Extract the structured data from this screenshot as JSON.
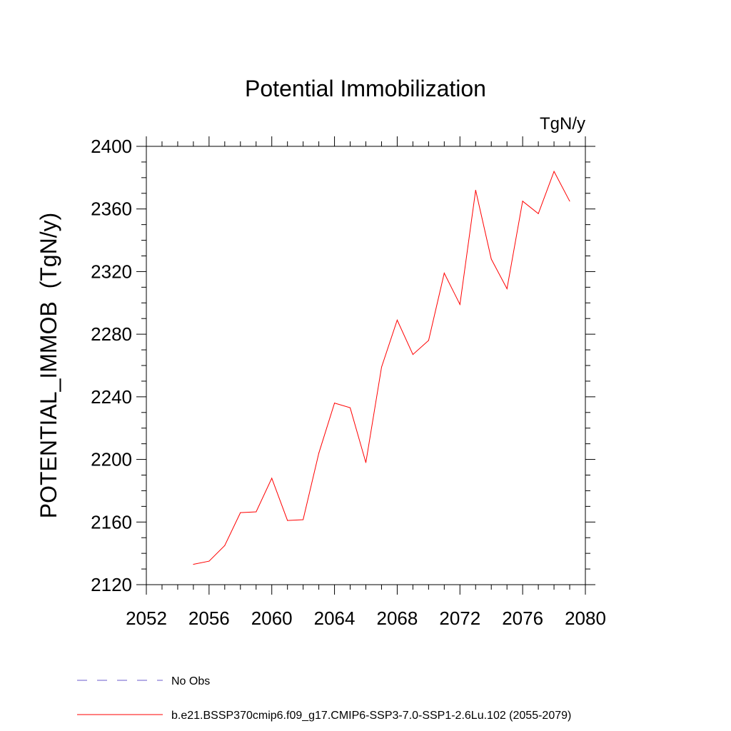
{
  "chart_data": {
    "type": "line",
    "title": "Potential Immobilization",
    "units_label": "TgN/y",
    "ylabel": "POTENTIAL_IMMOB  (TgN/y)",
    "xlabel": "",
    "xlim": [
      2052,
      2080
    ],
    "ylim": [
      2120,
      2400
    ],
    "xticks": [
      2052,
      2056,
      2060,
      2064,
      2068,
      2072,
      2076,
      2080
    ],
    "yticks": [
      2120,
      2160,
      2200,
      2240,
      2280,
      2320,
      2360,
      2400
    ],
    "series": [
      {
        "name": "b.e21.BSSP370cmip6.f09_g17.CMIP6-SSP3-7.0-SSP1-2.6Lu.102 (2055-2079)",
        "color": "#ff0000",
        "x": [
          2055,
          2056,
          2057,
          2058,
          2059,
          2060,
          2061,
          2062,
          2063,
          2064,
          2065,
          2066,
          2067,
          2068,
          2069,
          2070,
          2071,
          2072,
          2073,
          2074,
          2075,
          2076,
          2077,
          2078,
          2079
        ],
        "values": [
          2133,
          2135,
          2145,
          2166,
          2166.5,
          2188,
          2161,
          2161.5,
          2204,
          2236,
          2233,
          2198,
          2259,
          2289,
          2267,
          2276,
          2319,
          2299,
          2372,
          2328,
          2309,
          2365,
          2357,
          2384,
          2365
        ]
      }
    ],
    "legend": [
      {
        "label": "No Obs",
        "color": "#6a5acd",
        "style": "dashed"
      },
      {
        "label": "b.e21.BSSP370cmip6.f09_g17.CMIP6-SSP3-7.0-SSP1-2.6Lu.102 (2055-2079)",
        "color": "#ff0000",
        "style": "solid"
      }
    ]
  }
}
